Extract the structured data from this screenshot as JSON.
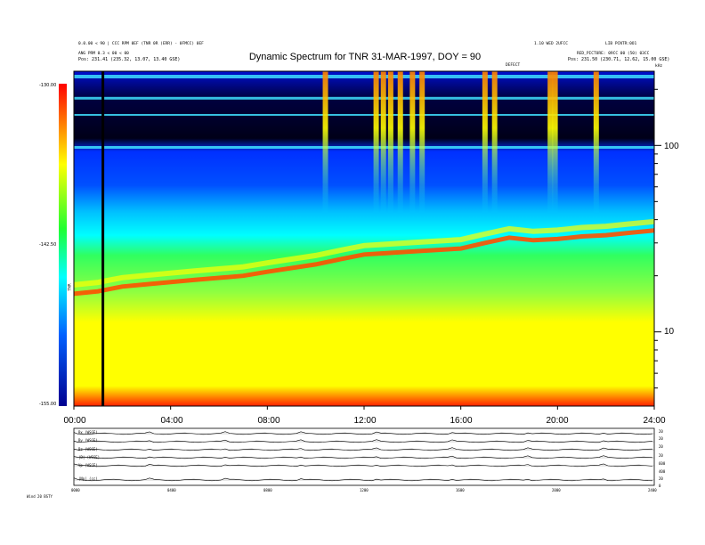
{
  "header": {
    "title": "Dynamic Spectrum for TNR 31-MAR-1997, DOY = 90",
    "left_info": [
      "0.0.00 < 90 | CCC RPM 0EF (TNR 0R (ERR) - 0FMCC) 0EF",
      "ANG PRM 0.3 < 00 < 00",
      "Pos:   231.41 (235.32, 13.07, 13.40 GSE)"
    ],
    "right_info": [
      "1.10 WED 2UFCC",
      "LIB PCNTR:0O1",
      "RED_PICTURE: 09CC 00 (50) 03CC",
      "Pos:   231.50 (230.71, 12.62, 15.00 GSE)"
    ],
    "center_mark": "DEFECT",
    "corner_mark": "kHz"
  },
  "colorbar": {
    "ticks": [
      "-130.00",
      "-142.50",
      "-155.00"
    ],
    "label": "TNR"
  },
  "chart_data": [
    {
      "type": "heatmap",
      "title": "Dynamic Spectrum for TNR 31-MAR-1997, DOY = 90",
      "x_ticks": [
        "00:00",
        "04:00",
        "08:00",
        "12:00",
        "16:00",
        "20:00",
        "24:00"
      ],
      "xlim": [
        0,
        24
      ],
      "y_scale": "log",
      "y_ticks": [
        "100",
        "10"
      ],
      "ylim": [
        4,
        250
      ],
      "color_range": [
        -155,
        -130
      ],
      "colormap": [
        "#1a0080",
        "#0000ff",
        "#00a0ff",
        "#00ffff",
        "#40ff60",
        "#ffff00",
        "#ff8000",
        "#ff0000"
      ],
      "plasma_line_hr": [
        0,
        1,
        2,
        3,
        4,
        5,
        6,
        7,
        8,
        9,
        10,
        11,
        12,
        13,
        14,
        15,
        16,
        17,
        18,
        19,
        20,
        21,
        22,
        23,
        24
      ],
      "plasma_line_khz": [
        16,
        16.5,
        17.5,
        18,
        18.5,
        19,
        19.5,
        20,
        21,
        22,
        23,
        24.5,
        26,
        26.5,
        27,
        27.5,
        28,
        30,
        32,
        31,
        31.5,
        32.5,
        33,
        34,
        35
      ],
      "vertical_bursts_hr": [
        10.4,
        12.5,
        12.8,
        13.1,
        13.5,
        14.0,
        14.4,
        17.0,
        17.4,
        19.7,
        19.9,
        21.6
      ],
      "black_line_hr": 1.2
    },
    {
      "type": "line",
      "x_ticks": [
        "0000",
        "0400",
        "0800",
        "1200",
        "1600",
        "2000",
        "2400"
      ],
      "panels": [
        {
          "label": "Bx (WSGE)",
          "right_ticks": [
            "20",
            "0",
            "-20"
          ]
        },
        {
          "label": "By (WSGE)",
          "right_ticks": [
            "20",
            "0",
            "-20"
          ]
        },
        {
          "label": "Bz (WSGE)",
          "right_ticks": [
            "20",
            "0",
            "-20"
          ]
        },
        {
          "label": "|B| (WSGE)",
          "right_ticks": [
            "20",
            "0"
          ]
        },
        {
          "label": "Vp (WSGE)",
          "right_ticks": [
            "600",
            "400"
          ]
        },
        {
          "label": "|Np| (cc)",
          "right_ticks": [
            "20",
            "0"
          ]
        }
      ],
      "footer_note": "Wind 20 BSTY"
    }
  ]
}
